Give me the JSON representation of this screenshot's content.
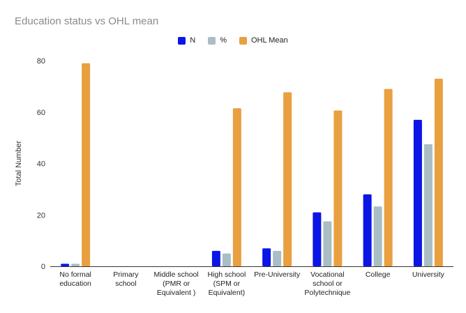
{
  "chart_data": {
    "type": "bar",
    "title": "Education status vs OHL mean",
    "xlabel": "",
    "ylabel": "Total Number",
    "ylim": [
      0,
      80
    ],
    "yticks": [
      0,
      20,
      40,
      60,
      80
    ],
    "grid": false,
    "legend_position": "top",
    "categories": [
      [
        "No formal",
        "education"
      ],
      [
        "Primary",
        "school"
      ],
      [
        "Middle school",
        "(PMR or",
        "Equivalent )"
      ],
      [
        "High school",
        "(SPM or",
        "Equivalent)"
      ],
      [
        "Pre-University"
      ],
      [
        "Vocational",
        "school or",
        "Polytechnique"
      ],
      [
        "College"
      ],
      [
        "University"
      ]
    ],
    "series": [
      {
        "name": "N",
        "color": "#0b16e6",
        "values": [
          1,
          0,
          0,
          6,
          7,
          21,
          28,
          57
        ]
      },
      {
        "name": "%",
        "color": "#a9bec4",
        "values": [
          1,
          0,
          0,
          5,
          6,
          17.5,
          23.3,
          47.5
        ]
      },
      {
        "name": "OHL Mean",
        "color": "#e8a040",
        "values": [
          79,
          0,
          0,
          61.5,
          67.7,
          60.6,
          69,
          73
        ]
      }
    ]
  }
}
